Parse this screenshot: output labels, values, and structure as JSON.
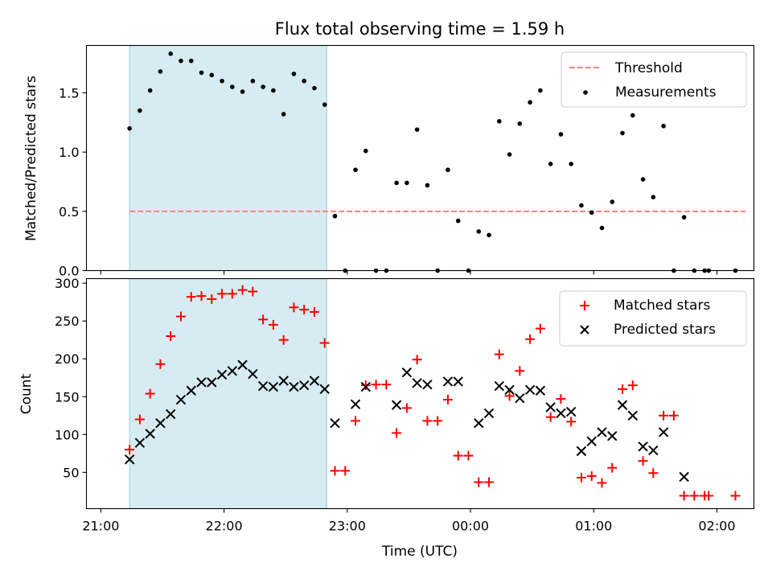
{
  "chart_data": [
    {
      "type": "scatter",
      "title": "Flux total observing time = 1.59 h",
      "ylabel": "Matched/Predicted stars",
      "xlim_minutes_since_21h": [
        -7,
        318
      ],
      "ylim": [
        0,
        1.9
      ],
      "yticks": [
        0.0,
        0.5,
        1.0,
        1.5
      ],
      "ytick_labels": [
        "0.0",
        "0.5",
        "1.0",
        "1.5"
      ],
      "shaded_span": {
        "start": "21:14",
        "end": "22:50",
        "color": "#add8e6"
      },
      "legend_position": "top-right",
      "series": [
        {
          "name": "Threshold",
          "kind": "dashed-line",
          "color": "#ff7f7f",
          "x_start": "21:14",
          "x_end": "02:14",
          "y": 0.5
        },
        {
          "name": "Measurements",
          "kind": "dots",
          "color": "#000000",
          "points": [
            [
              "21:14",
              1.2
            ],
            [
              "21:19",
              1.35
            ],
            [
              "21:24",
              1.52
            ],
            [
              "21:29",
              1.68
            ],
            [
              "21:34",
              1.83
            ],
            [
              "21:39",
              1.77
            ],
            [
              "21:44",
              1.77
            ],
            [
              "21:49",
              1.67
            ],
            [
              "21:54",
              1.65
            ],
            [
              "21:59",
              1.6
            ],
            [
              "22:04",
              1.55
            ],
            [
              "22:09",
              1.51
            ],
            [
              "22:14",
              1.6
            ],
            [
              "22:19",
              1.55
            ],
            [
              "22:24",
              1.52
            ],
            [
              "22:29",
              1.32
            ],
            [
              "22:34",
              1.66
            ],
            [
              "22:39",
              1.6
            ],
            [
              "22:44",
              1.54
            ],
            [
              "22:49",
              1.4
            ],
            [
              "22:54",
              0.46
            ],
            [
              "22:59",
              0.0
            ],
            [
              "23:04",
              0.85
            ],
            [
              "23:09",
              1.01
            ],
            [
              "23:14",
              0.0
            ],
            [
              "23:19",
              0.0
            ],
            [
              "23:24",
              0.74
            ],
            [
              "23:29",
              0.74
            ],
            [
              "23:34",
              1.19
            ],
            [
              "23:39",
              0.72
            ],
            [
              "23:44",
              0.0
            ],
            [
              "23:49",
              0.85
            ],
            [
              "23:54",
              0.42
            ],
            [
              "23:59",
              0.0
            ],
            [
              "00:04",
              0.33
            ],
            [
              "00:09",
              0.3
            ],
            [
              "00:14",
              1.26
            ],
            [
              "00:19",
              0.98
            ],
            [
              "00:24",
              1.24
            ],
            [
              "00:29",
              1.42
            ],
            [
              "00:34",
              1.52
            ],
            [
              "00:39",
              0.9
            ],
            [
              "00:44",
              1.15
            ],
            [
              "00:49",
              0.9
            ],
            [
              "00:54",
              0.55
            ],
            [
              "00:59",
              0.49
            ],
            [
              "01:04",
              0.36
            ],
            [
              "01:09",
              0.58
            ],
            [
              "01:14",
              1.16
            ],
            [
              "01:19",
              1.31
            ],
            [
              "01:24",
              0.77
            ],
            [
              "01:29",
              0.62
            ],
            [
              "01:34",
              1.22
            ],
            [
              "01:39",
              0.0
            ],
            [
              "01:44",
              0.45
            ],
            [
              "01:49",
              0.0
            ],
            [
              "01:54",
              0.0
            ],
            [
              "01:56",
              0.0
            ],
            [
              "02:09",
              0.0
            ]
          ]
        }
      ]
    },
    {
      "type": "scatter",
      "xlabel": "Time (UTC)",
      "ylabel": "Count",
      "xlim_minutes_since_21h": [
        -7,
        318
      ],
      "ylim": [
        2,
        306
      ],
      "yticks": [
        50,
        100,
        150,
        200,
        250,
        300
      ],
      "ytick_labels": [
        "50",
        "100",
        "150",
        "200",
        "250",
        "300"
      ],
      "xticks": [
        "21:00",
        "22:00",
        "23:00",
        "00:00",
        "01:00",
        "02:00"
      ],
      "shaded_span": {
        "start": "21:14",
        "end": "22:50",
        "color": "#add8e6"
      },
      "legend_position": "top-right",
      "series": [
        {
          "name": "Matched stars",
          "marker": "plus",
          "color": "#ff0000",
          "points": [
            [
              "21:14",
              80
            ],
            [
              "21:19",
              120
            ],
            [
              "21:24",
              154
            ],
            [
              "21:29",
              193
            ],
            [
              "21:34",
              230
            ],
            [
              "21:39",
              256
            ],
            [
              "21:44",
              282
            ],
            [
              "21:49",
              283
            ],
            [
              "21:54",
              279
            ],
            [
              "21:59",
              286
            ],
            [
              "22:04",
              286
            ],
            [
              "22:09",
              291
            ],
            [
              "22:14",
              289
            ],
            [
              "22:19",
              252
            ],
            [
              "22:24",
              245
            ],
            [
              "22:29",
              225
            ],
            [
              "22:34",
              268
            ],
            [
              "22:39",
              265
            ],
            [
              "22:44",
              262
            ],
            [
              "22:49",
              221
            ],
            [
              "22:54",
              52
            ],
            [
              "22:59",
              52
            ],
            [
              "23:04",
              118
            ],
            [
              "23:09",
              165
            ],
            [
              "23:14",
              166
            ],
            [
              "23:19",
              166
            ],
            [
              "23:24",
              102
            ],
            [
              "23:29",
              135
            ],
            [
              "23:34",
              199
            ],
            [
              "23:39",
              118
            ],
            [
              "23:44",
              118
            ],
            [
              "23:49",
              146
            ],
            [
              "23:54",
              72
            ],
            [
              "23:59",
              72
            ],
            [
              "00:04",
              37
            ],
            [
              "00:09",
              37
            ],
            [
              "00:14",
              206
            ],
            [
              "00:19",
              151
            ],
            [
              "00:24",
              184
            ],
            [
              "00:29",
              226
            ],
            [
              "00:34",
              240
            ],
            [
              "00:39",
              123
            ],
            [
              "00:44",
              147
            ],
            [
              "00:49",
              117
            ],
            [
              "00:54",
              43
            ],
            [
              "00:59",
              45
            ],
            [
              "01:04",
              36
            ],
            [
              "01:09",
              56
            ],
            [
              "01:14",
              160
            ],
            [
              "01:19",
              165
            ],
            [
              "01:24",
              65
            ],
            [
              "01:29",
              49
            ],
            [
              "01:34",
              125
            ],
            [
              "01:39",
              125
            ],
            [
              "01:44",
              19
            ],
            [
              "01:49",
              19
            ],
            [
              "01:54",
              19
            ],
            [
              "01:56",
              19
            ],
            [
              "02:09",
              19
            ]
          ]
        },
        {
          "name": "Predicted stars",
          "marker": "x",
          "color": "#000000",
          "points": [
            [
              "21:14",
              67
            ],
            [
              "21:19",
              89
            ],
            [
              "21:24",
              101
            ],
            [
              "21:29",
              115
            ],
            [
              "21:34",
              127
            ],
            [
              "21:39",
              146
            ],
            [
              "21:44",
              158
            ],
            [
              "21:49",
              169
            ],
            [
              "21:54",
              169
            ],
            [
              "21:59",
              179
            ],
            [
              "22:04",
              184
            ],
            [
              "22:09",
              192
            ],
            [
              "22:14",
              180
            ],
            [
              "22:19",
              164
            ],
            [
              "22:24",
              163
            ],
            [
              "22:29",
              171
            ],
            [
              "22:34",
              163
            ],
            [
              "22:39",
              165
            ],
            [
              "22:44",
              171
            ],
            [
              "22:49",
              160
            ],
            [
              "22:54",
              115
            ],
            [
              "23:04",
              140
            ],
            [
              "23:09",
              163
            ],
            [
              "23:24",
              139
            ],
            [
              "23:29",
              182
            ],
            [
              "23:34",
              168
            ],
            [
              "23:39",
              166
            ],
            [
              "23:49",
              170
            ],
            [
              "23:54",
              170
            ],
            [
              "00:04",
              115
            ],
            [
              "00:09",
              128
            ],
            [
              "00:14",
              164
            ],
            [
              "00:19",
              159
            ],
            [
              "00:24",
              148
            ],
            [
              "00:29",
              159
            ],
            [
              "00:34",
              158
            ],
            [
              "00:39",
              136
            ],
            [
              "00:44",
              128
            ],
            [
              "00:49",
              130
            ],
            [
              "00:54",
              78
            ],
            [
              "00:59",
              91
            ],
            [
              "01:04",
              103
            ],
            [
              "01:09",
              98
            ],
            [
              "01:14",
              139
            ],
            [
              "01:19",
              125
            ],
            [
              "01:24",
              84
            ],
            [
              "01:29",
              79
            ],
            [
              "01:34",
              103
            ],
            [
              "01:44",
              44
            ]
          ]
        }
      ]
    }
  ]
}
